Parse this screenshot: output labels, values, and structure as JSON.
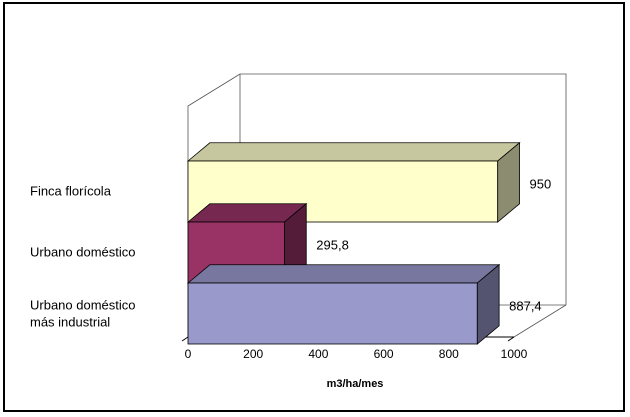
{
  "chart_data": {
    "type": "bar",
    "orientation": "horizontal",
    "style": "3d",
    "categories": [
      "Finca florícola",
      "Urbano doméstico",
      "Urbano doméstico más industrial"
    ],
    "category_lines": [
      [
        "Finca florícola"
      ],
      [
        "Urbano doméstico"
      ],
      [
        "Urbano doméstico",
        "más industrial"
      ]
    ],
    "values": [
      950,
      295.8,
      887.4
    ],
    "value_labels": [
      "950",
      "295,8",
      "887,4"
    ],
    "colors": [
      "#FFFFCC",
      "#993366",
      "#9999CC"
    ],
    "xlabel": "m3/ha/mes",
    "xlim": [
      0,
      1000
    ],
    "xticks": [
      0,
      200,
      400,
      600,
      800,
      1000
    ],
    "grid": false,
    "legend": false
  }
}
